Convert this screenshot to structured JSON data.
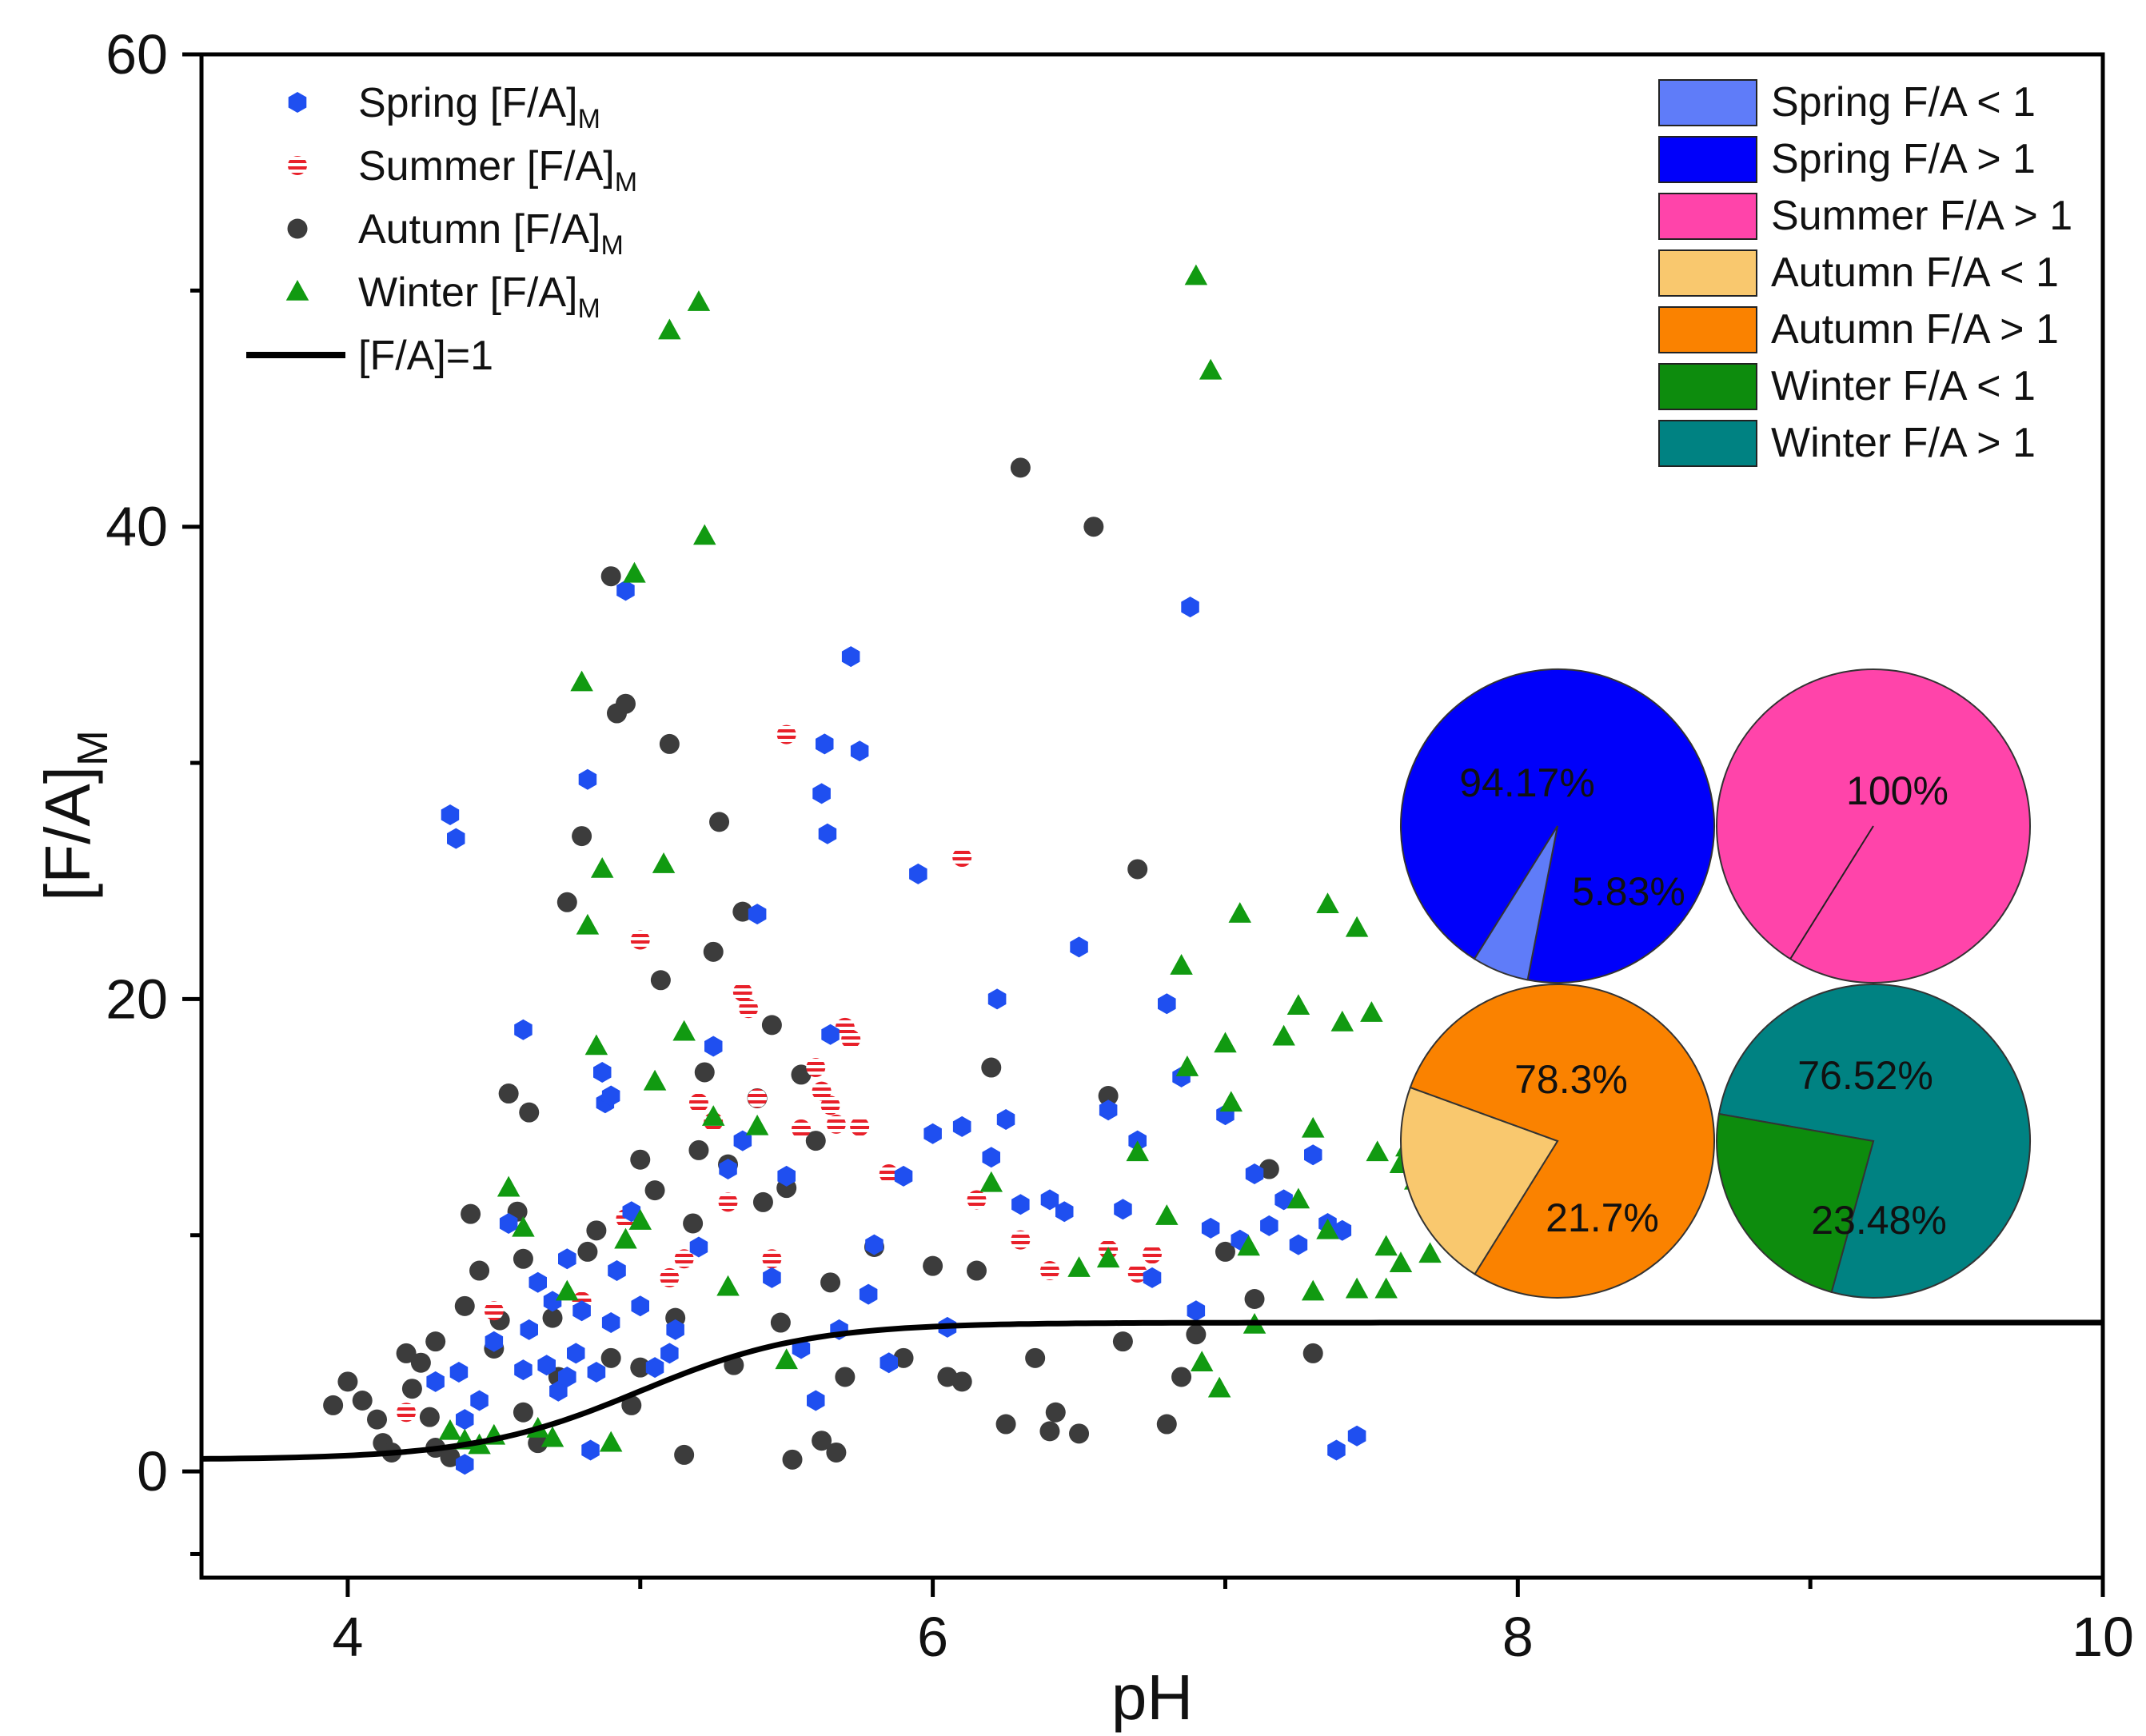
{
  "chart_data": {
    "type": "scatter",
    "title": "",
    "xlabel": "pH",
    "ylabel": "[F/A]",
    "ylabel_sub": "M",
    "xlim": [
      3.5,
      10
    ],
    "ylim": [
      -4.5,
      60
    ],
    "xticks": [
      4,
      6,
      8,
      10
    ],
    "xminor": [
      5,
      7,
      9
    ],
    "yticks": [
      0,
      20,
      40,
      60
    ],
    "yminor": [
      -3.5,
      10,
      30,
      50
    ],
    "series": [
      {
        "name": "Spring [F/A]",
        "sub": "M",
        "marker": "hexagon",
        "color": "#1F4FF0",
        "points": [
          [
            4.35,
            27.8
          ],
          [
            4.37,
            26.8
          ],
          [
            4.38,
            4.2
          ],
          [
            4.3,
            3.8
          ],
          [
            4.4,
            0.3
          ],
          [
            4.45,
            3.0
          ],
          [
            4.5,
            5.5
          ],
          [
            4.55,
            10.5
          ],
          [
            4.6,
            18.7
          ],
          [
            4.62,
            6.0
          ],
          [
            4.65,
            8.0
          ],
          [
            4.68,
            4.5
          ],
          [
            4.7,
            7.2
          ],
          [
            4.72,
            3.4
          ],
          [
            4.75,
            9.0
          ],
          [
            4.78,
            5.0
          ],
          [
            4.8,
            6.8
          ],
          [
            4.82,
            29.3
          ],
          [
            4.83,
            0.9
          ],
          [
            4.85,
            4.2
          ],
          [
            4.87,
            16.9
          ],
          [
            4.88,
            15.6
          ],
          [
            4.9,
            15.9
          ],
          [
            4.92,
            8.5
          ],
          [
            4.95,
            37.3
          ],
          [
            4.97,
            11.0
          ],
          [
            5.0,
            7.0
          ],
          [
            5.05,
            4.4
          ],
          [
            5.1,
            5.0
          ],
          [
            5.12,
            6.0
          ],
          [
            5.2,
            9.5
          ],
          [
            5.25,
            18.0
          ],
          [
            5.3,
            12.8
          ],
          [
            5.35,
            14.0
          ],
          [
            5.4,
            23.6
          ],
          [
            5.45,
            8.2
          ],
          [
            5.5,
            12.5
          ],
          [
            5.55,
            5.2
          ],
          [
            5.6,
            3.0
          ],
          [
            5.62,
            28.7
          ],
          [
            5.63,
            30.8
          ],
          [
            5.64,
            27.0
          ],
          [
            5.65,
            18.5
          ],
          [
            5.68,
            6.0
          ],
          [
            5.72,
            34.5
          ],
          [
            5.75,
            30.5
          ],
          [
            5.78,
            7.5
          ],
          [
            5.8,
            9.6
          ],
          [
            5.85,
            4.6
          ],
          [
            5.9,
            12.5
          ],
          [
            5.95,
            25.3
          ],
          [
            6.0,
            14.3
          ],
          [
            6.05,
            6.1
          ],
          [
            6.1,
            14.6
          ],
          [
            6.2,
            13.3
          ],
          [
            6.22,
            20.0
          ],
          [
            6.25,
            14.9
          ],
          [
            6.3,
            11.3
          ],
          [
            6.4,
            11.5
          ],
          [
            6.45,
            11.0
          ],
          [
            6.5,
            22.2
          ],
          [
            6.6,
            15.3
          ],
          [
            6.65,
            11.1
          ],
          [
            6.7,
            14.0
          ],
          [
            6.75,
            8.2
          ],
          [
            6.8,
            19.8
          ],
          [
            6.85,
            16.7
          ],
          [
            6.88,
            36.6
          ],
          [
            6.9,
            6.8
          ],
          [
            6.95,
            10.3
          ],
          [
            7.0,
            15.1
          ],
          [
            7.05,
            9.8
          ],
          [
            7.1,
            12.6
          ],
          [
            7.15,
            10.4
          ],
          [
            7.2,
            11.5
          ],
          [
            7.25,
            9.6
          ],
          [
            7.3,
            13.4
          ],
          [
            7.35,
            10.5
          ],
          [
            7.38,
            0.9
          ],
          [
            7.4,
            10.2
          ],
          [
            7.45,
            1.5
          ],
          [
            4.4,
            2.2
          ],
          [
            4.6,
            4.3
          ],
          [
            4.75,
            4.0
          ],
          [
            4.9,
            6.3
          ]
        ]
      },
      {
        "name": "Summer [F/A]",
        "sub": "M",
        "marker": "striped-circle",
        "color": "#E8202A",
        "points": [
          [
            4.2,
            2.5
          ],
          [
            4.5,
            6.8
          ],
          [
            4.8,
            7.2
          ],
          [
            4.95,
            10.7
          ],
          [
            5.0,
            22.5
          ],
          [
            5.1,
            8.2
          ],
          [
            5.15,
            9.0
          ],
          [
            5.2,
            15.6
          ],
          [
            5.25,
            14.8
          ],
          [
            5.3,
            11.4
          ],
          [
            5.35,
            20.3
          ],
          [
            5.37,
            19.6
          ],
          [
            5.4,
            15.8
          ],
          [
            5.45,
            9.0
          ],
          [
            5.5,
            31.2
          ],
          [
            5.55,
            14.5
          ],
          [
            5.6,
            17.1
          ],
          [
            5.62,
            16.1
          ],
          [
            5.65,
            15.5
          ],
          [
            5.67,
            14.7
          ],
          [
            5.7,
            18.8
          ],
          [
            5.72,
            18.3
          ],
          [
            5.75,
            14.6
          ],
          [
            5.85,
            12.6
          ],
          [
            6.1,
            26.0
          ],
          [
            6.15,
            11.5
          ],
          [
            6.3,
            9.8
          ],
          [
            6.4,
            8.5
          ],
          [
            6.6,
            9.4
          ],
          [
            6.7,
            8.4
          ],
          [
            6.75,
            9.2
          ]
        ]
      },
      {
        "name": "Autumn [F/A]",
        "sub": "M",
        "marker": "circle",
        "color": "#3C3C3C",
        "points": [
          [
            3.95,
            2.8
          ],
          [
            4.0,
            3.8
          ],
          [
            4.05,
            3.0
          ],
          [
            4.1,
            2.2
          ],
          [
            4.12,
            1.2
          ],
          [
            4.15,
            0.8
          ],
          [
            4.2,
            5.0
          ],
          [
            4.22,
            3.5
          ],
          [
            4.25,
            4.6
          ],
          [
            4.28,
            2.3
          ],
          [
            4.3,
            1.0
          ],
          [
            4.35,
            0.6
          ],
          [
            4.4,
            7.0
          ],
          [
            4.42,
            10.9
          ],
          [
            4.45,
            8.5
          ],
          [
            4.5,
            5.2
          ],
          [
            4.52,
            6.4
          ],
          [
            4.55,
            16.0
          ],
          [
            4.58,
            11.0
          ],
          [
            4.6,
            9.0
          ],
          [
            4.62,
            15.2
          ],
          [
            4.65,
            1.2
          ],
          [
            4.7,
            6.5
          ],
          [
            4.72,
            4.0
          ],
          [
            4.75,
            24.1
          ],
          [
            4.8,
            26.9
          ],
          [
            4.82,
            9.3
          ],
          [
            4.85,
            10.2
          ],
          [
            4.9,
            37.9
          ],
          [
            4.92,
            32.1
          ],
          [
            4.95,
            32.5
          ],
          [
            4.97,
            2.8
          ],
          [
            5.0,
            4.4
          ],
          [
            5.05,
            11.9
          ],
          [
            5.07,
            20.8
          ],
          [
            5.1,
            30.8
          ],
          [
            5.12,
            6.5
          ],
          [
            5.15,
            0.7
          ],
          [
            5.18,
            10.5
          ],
          [
            5.2,
            13.6
          ],
          [
            5.22,
            16.9
          ],
          [
            5.25,
            22.0
          ],
          [
            5.27,
            27.5
          ],
          [
            5.3,
            13.0
          ],
          [
            5.32,
            4.5
          ],
          [
            5.35,
            23.7
          ],
          [
            5.4,
            15.8
          ],
          [
            5.42,
            11.4
          ],
          [
            5.45,
            18.9
          ],
          [
            5.48,
            6.3
          ],
          [
            5.5,
            12.0
          ],
          [
            5.52,
            0.5
          ],
          [
            5.55,
            16.8
          ],
          [
            5.6,
            14.0
          ],
          [
            5.62,
            1.3
          ],
          [
            5.65,
            8.0
          ],
          [
            5.67,
            0.8
          ],
          [
            5.7,
            4.0
          ],
          [
            5.8,
            9.5
          ],
          [
            5.9,
            4.8
          ],
          [
            6.0,
            8.7
          ],
          [
            6.05,
            4.0
          ],
          [
            6.1,
            3.8
          ],
          [
            6.15,
            8.5
          ],
          [
            6.2,
            17.1
          ],
          [
            6.25,
            2.0
          ],
          [
            6.3,
            42.5
          ],
          [
            6.35,
            4.8
          ],
          [
            6.4,
            1.7
          ],
          [
            6.42,
            2.5
          ],
          [
            6.5,
            1.6
          ],
          [
            6.55,
            40.0
          ],
          [
            6.6,
            15.9
          ],
          [
            6.65,
            5.5
          ],
          [
            6.7,
            25.5
          ],
          [
            6.8,
            2.0
          ],
          [
            6.85,
            4.0
          ],
          [
            6.9,
            5.8
          ],
          [
            7.0,
            9.3
          ],
          [
            7.1,
            7.3
          ],
          [
            7.15,
            12.8
          ],
          [
            7.3,
            5.0
          ],
          [
            4.3,
            5.5
          ],
          [
            4.6,
            2.5
          ],
          [
            4.9,
            4.8
          ],
          [
            5.0,
            13.2
          ]
        ]
      },
      {
        "name": "Winter [F/A]",
        "sub": "M",
        "marker": "triangle",
        "color": "#119A11",
        "points": [
          [
            4.35,
            1.7
          ],
          [
            4.4,
            1.3
          ],
          [
            4.45,
            1.1
          ],
          [
            4.5,
            1.5
          ],
          [
            4.55,
            12.0
          ],
          [
            4.6,
            10.3
          ],
          [
            4.65,
            1.8
          ],
          [
            4.7,
            1.4
          ],
          [
            4.75,
            7.6
          ],
          [
            4.8,
            33.4
          ],
          [
            4.82,
            23.1
          ],
          [
            4.85,
            18.0
          ],
          [
            4.87,
            25.5
          ],
          [
            4.9,
            1.2
          ],
          [
            4.95,
            9.8
          ],
          [
            4.98,
            38.0
          ],
          [
            5.0,
            10.6
          ],
          [
            5.05,
            16.5
          ],
          [
            5.08,
            25.7
          ],
          [
            5.1,
            48.3
          ],
          [
            5.15,
            18.6
          ],
          [
            5.2,
            49.5
          ],
          [
            5.22,
            39.6
          ],
          [
            5.25,
            15.0
          ],
          [
            5.3,
            7.8
          ],
          [
            5.4,
            14.6
          ],
          [
            5.5,
            4.7
          ],
          [
            6.2,
            12.2
          ],
          [
            6.5,
            8.6
          ],
          [
            6.6,
            9.0
          ],
          [
            6.7,
            13.5
          ],
          [
            6.8,
            10.8
          ],
          [
            6.85,
            21.4
          ],
          [
            6.87,
            17.1
          ],
          [
            6.9,
            50.6
          ],
          [
            6.92,
            4.6
          ],
          [
            6.95,
            46.6
          ],
          [
            6.98,
            3.5
          ],
          [
            7.0,
            18.1
          ],
          [
            7.02,
            15.6
          ],
          [
            7.05,
            23.6
          ],
          [
            7.08,
            9.5
          ],
          [
            7.1,
            6.2
          ],
          [
            7.2,
            18.4
          ],
          [
            7.25,
            19.7
          ],
          [
            7.3,
            14.5
          ],
          [
            7.35,
            24.0
          ],
          [
            7.4,
            19.0
          ],
          [
            7.45,
            23.0
          ],
          [
            7.5,
            19.4
          ],
          [
            7.52,
            13.5
          ],
          [
            7.55,
            9.5
          ],
          [
            7.6,
            8.8
          ],
          [
            7.62,
            13.7
          ],
          [
            7.65,
            12.3
          ],
          [
            7.7,
            9.2
          ],
          [
            7.75,
            13.2
          ],
          [
            7.25,
            11.5
          ],
          [
            7.3,
            7.6
          ],
          [
            7.35,
            10.2
          ],
          [
            7.45,
            7.7
          ],
          [
            7.55,
            7.7
          ],
          [
            7.6,
            13.0
          ]
        ]
      }
    ],
    "line": {
      "name": "[F/A]=1",
      "color": "#000000",
      "curve": {
        "baseline": 0.5,
        "plateau": 6.3,
        "midpoint": 5.0,
        "steepness": 3.5,
        "x_start": 3.5,
        "x_end": 10
      }
    },
    "pie_legend": [
      {
        "label": "Spring F/A < 1",
        "color": "#5F7CF9"
      },
      {
        "label": "Spring F/A > 1",
        "color": "#0000FA"
      },
      {
        "label": "Summer F/A > 1",
        "color": "#FF44AA"
      },
      {
        "label": "Autumn F/A < 1",
        "color": "#F9C86E"
      },
      {
        "label": "Autumn F/A > 1",
        "color": "#FA8200"
      },
      {
        "label": "Winter F/A < 1",
        "color": "#0D8C0D"
      },
      {
        "label": "Winter F/A > 1",
        "color": "#008282"
      }
    ],
    "pies": [
      {
        "name": "Spring",
        "slices": [
          {
            "label": "94.17%",
            "value": 94.17,
            "color": "#0000FA"
          },
          {
            "label": "5.83%",
            "value": 5.83,
            "color": "#5F7CF9"
          }
        ]
      },
      {
        "name": "Summer",
        "slices": [
          {
            "label": "100%",
            "value": 100,
            "color": "#FF44AA"
          }
        ]
      },
      {
        "name": "Autumn",
        "slices": [
          {
            "label": "78.3%",
            "value": 78.3,
            "color": "#FA8200"
          },
          {
            "label": "21.7%",
            "value": 21.7,
            "color": "#F9C86E"
          }
        ]
      },
      {
        "name": "Winter",
        "slices": [
          {
            "label": "76.52%",
            "value": 76.52,
            "color": "#008282"
          },
          {
            "label": "23.48%",
            "value": 23.48,
            "color": "#0D8C0D"
          }
        ]
      }
    ]
  }
}
